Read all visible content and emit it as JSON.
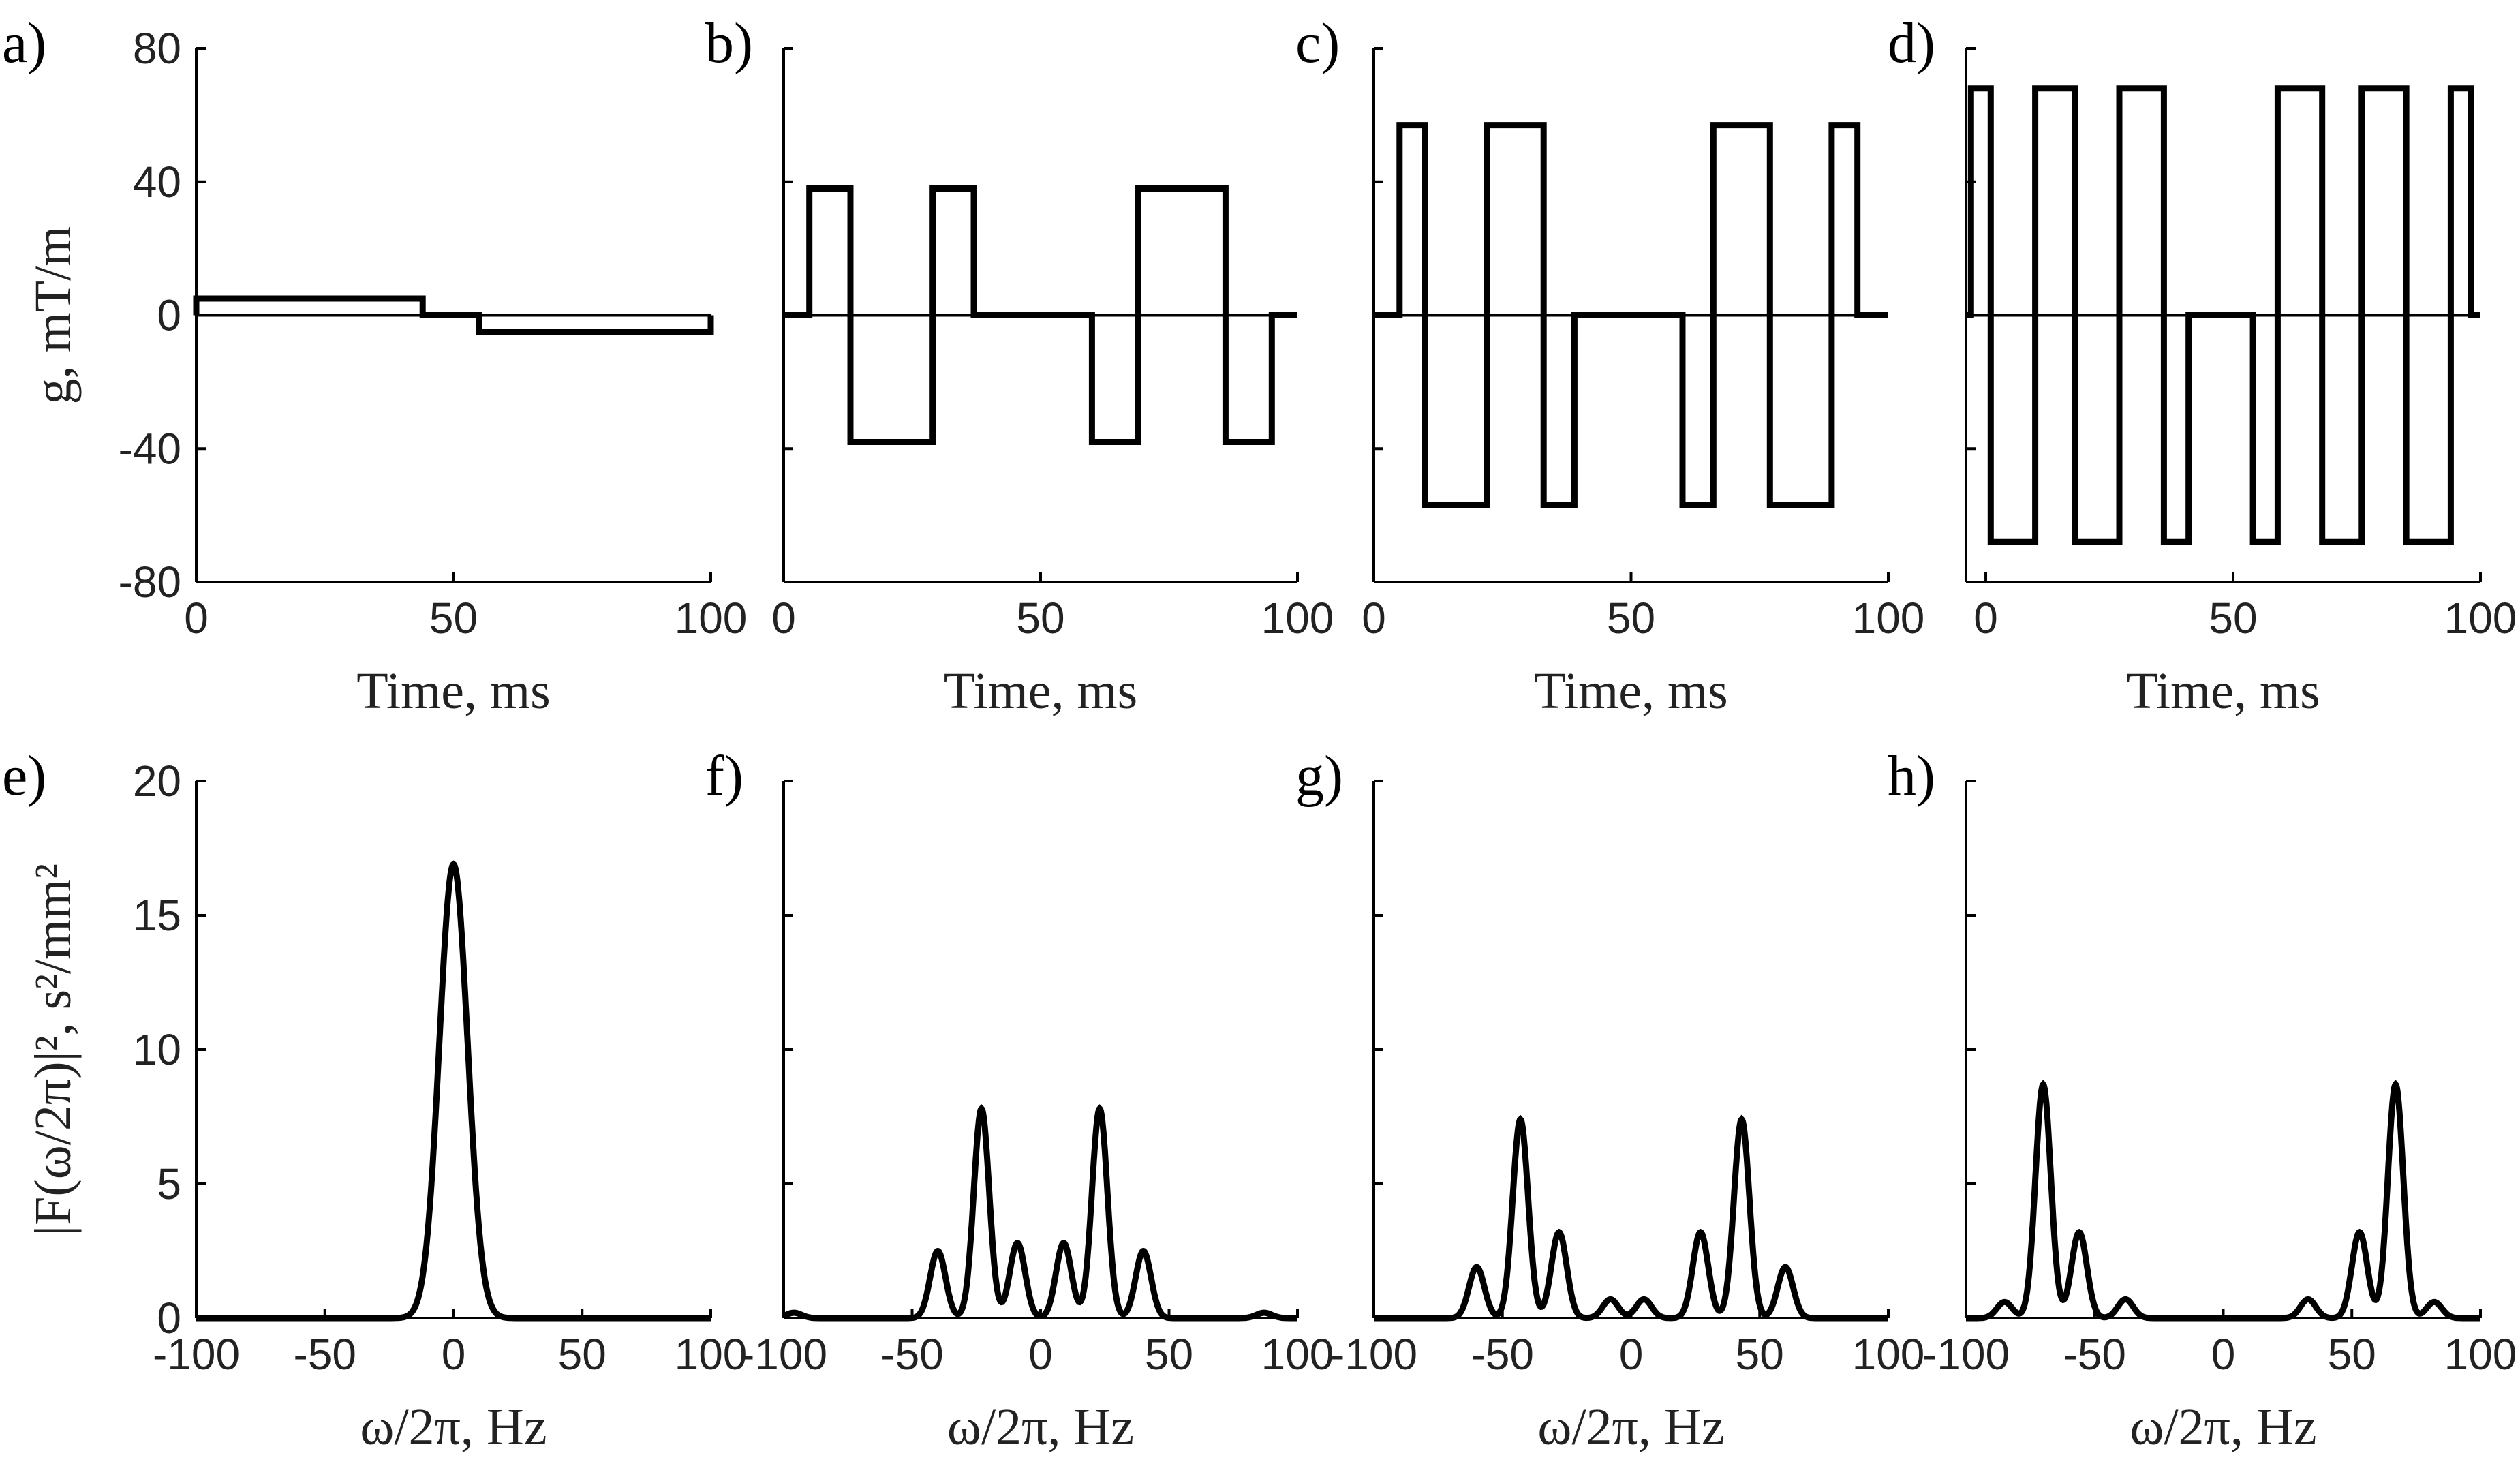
{
  "chart_data": [
    {
      "panel": "a)",
      "type": "line",
      "xlabel": "Time, ms",
      "ylabel": "g, mT/m",
      "xlim": [
        0,
        100
      ],
      "ylim": [
        -80,
        80
      ],
      "xticks": [
        "0",
        "50",
        "100"
      ],
      "yticks": [
        "80",
        "40",
        "0",
        "-40",
        "-80"
      ],
      "x": [
        0,
        0,
        44,
        44,
        55,
        55,
        100,
        100
      ],
      "y": [
        0,
        5,
        5,
        0,
        0,
        -5,
        -5,
        0
      ]
    },
    {
      "panel": "b)",
      "type": "line",
      "xlabel": "Time, ms",
      "xlim": [
        0,
        100
      ],
      "ylim": [
        -80,
        80
      ],
      "xticks": [
        "0",
        "50",
        "100"
      ],
      "yticks": [
        "",
        "",
        "",
        "",
        ""
      ],
      "x": [
        0,
        5,
        5,
        13,
        13,
        29,
        29,
        37,
        37,
        60,
        60,
        69,
        69,
        86,
        86,
        95,
        95,
        100
      ],
      "y": [
        0,
        0,
        38,
        38,
        -38,
        -38,
        38,
        38,
        0,
        0,
        -38,
        -38,
        38,
        38,
        -38,
        -38,
        0,
        0
      ],
      "note_y": "levels approx +/-38"
    },
    {
      "panel": "c)",
      "type": "line",
      "xlabel": "Time, ms",
      "xlim": [
        0,
        100
      ],
      "ylim": [
        -80,
        80
      ],
      "xticks": [
        "0",
        "50",
        "100"
      ],
      "yticks": [
        "",
        "",
        "",
        "",
        ""
      ],
      "x": [
        0,
        5,
        5,
        10,
        10,
        22,
        22,
        33,
        33,
        39,
        39,
        60,
        60,
        66,
        66,
        77,
        77,
        89,
        89,
        94,
        94,
        100
      ],
      "y": [
        0,
        0,
        57,
        57,
        -57,
        -57,
        57,
        57,
        -57,
        -57,
        0,
        0,
        -57,
        -57,
        57,
        57,
        -57,
        -57,
        57,
        57,
        0,
        0
      ]
    },
    {
      "panel": "d)",
      "type": "line",
      "xlabel": "Time, ms",
      "xlim": [
        -4,
        100
      ],
      "ylim": [
        -80,
        80
      ],
      "xticks": [
        "0",
        "50",
        "100"
      ],
      "yticks": [
        "",
        "",
        "",
        "",
        ""
      ],
      "x": [
        -4,
        -3,
        -3,
        1,
        1,
        10,
        10,
        18,
        18,
        27,
        27,
        36,
        36,
        41,
        41,
        54,
        54,
        59,
        59,
        68,
        68,
        76,
        76,
        85,
        85,
        94,
        94,
        98,
        98,
        100
      ],
      "y": [
        0,
        0,
        68,
        68,
        -68,
        -68,
        68,
        68,
        -68,
        -68,
        68,
        68,
        -68,
        -68,
        0,
        0,
        -68,
        -68,
        68,
        68,
        -68,
        -68,
        68,
        68,
        -68,
        -68,
        68,
        68,
        0,
        0
      ]
    },
    {
      "panel": "e)",
      "type": "line",
      "xlabel": "ω/2π, Hz",
      "ylabel": "|F(ω/2π)|², s²/mm²",
      "xlim": [
        -100,
        100
      ],
      "ylim": [
        0,
        20
      ],
      "xticks": [
        "-100",
        "-50",
        "0",
        "50",
        "100"
      ],
      "yticks": [
        "20",
        "15",
        "10",
        "5",
        "0"
      ],
      "peaks": [
        {
          "x": 0,
          "y": 16.9,
          "w": 5.5
        }
      ]
    },
    {
      "panel": "f)",
      "type": "line",
      "xlabel": "ω/2π, Hz",
      "xlim": [
        -100,
        100
      ],
      "ylim": [
        0,
        20
      ],
      "xticks": [
        "-100",
        "-50",
        "0",
        "50",
        "100"
      ],
      "yticks": [
        "",
        "",
        "",
        "",
        ""
      ],
      "peaks": [
        {
          "x": -96,
          "y": 0.2,
          "w": 3
        },
        {
          "x": -40,
          "y": 2.5,
          "w": 3
        },
        {
          "x": -23,
          "y": 7.8,
          "w": 3
        },
        {
          "x": -9,
          "y": 2.8,
          "w": 3
        },
        {
          "x": 9,
          "y": 2.8,
          "w": 3
        },
        {
          "x": 23,
          "y": 7.8,
          "w": 3
        },
        {
          "x": 40,
          "y": 2.5,
          "w": 3
        },
        {
          "x": 87,
          "y": 0.2,
          "w": 3
        }
      ]
    },
    {
      "panel": "g)",
      "type": "line",
      "xlabel": "ω/2π, Hz",
      "xlim": [
        -100,
        100
      ],
      "ylim": [
        0,
        20
      ],
      "xticks": [
        "-100",
        "-50",
        "0",
        "50",
        "100"
      ],
      "yticks": [
        "",
        "",
        "",
        "",
        ""
      ],
      "peaks": [
        {
          "x": -60,
          "y": 1.9,
          "w": 3
        },
        {
          "x": -43,
          "y": 7.4,
          "w": 3
        },
        {
          "x": -28,
          "y": 3.2,
          "w": 3
        },
        {
          "x": -8,
          "y": 0.7,
          "w": 3
        },
        {
          "x": 5,
          "y": 0.7,
          "w": 3
        },
        {
          "x": 27,
          "y": 3.2,
          "w": 3
        },
        {
          "x": 43,
          "y": 7.4,
          "w": 3
        },
        {
          "x": 60,
          "y": 1.9,
          "w": 3
        }
      ]
    },
    {
      "panel": "h)",
      "type": "line",
      "xlabel": "ω/2π, Hz",
      "xlim": [
        -100,
        100
      ],
      "ylim": [
        0,
        20
      ],
      "xticks": [
        "-100",
        "-50",
        "0",
        "50",
        "100"
      ],
      "yticks": [
        "",
        "",
        "",
        "",
        ""
      ],
      "peaks": [
        {
          "x": -85,
          "y": 0.6,
          "w": 3
        },
        {
          "x": -70,
          "y": 8.7,
          "w": 3
        },
        {
          "x": -56,
          "y": 3.2,
          "w": 3
        },
        {
          "x": -38,
          "y": 0.7,
          "w": 3
        },
        {
          "x": 33,
          "y": 0.7,
          "w": 3
        },
        {
          "x": 53,
          "y": 3.2,
          "w": 3
        },
        {
          "x": 67,
          "y": 8.7,
          "w": 3
        },
        {
          "x": 82,
          "y": 0.6,
          "w": 3
        }
      ]
    }
  ]
}
